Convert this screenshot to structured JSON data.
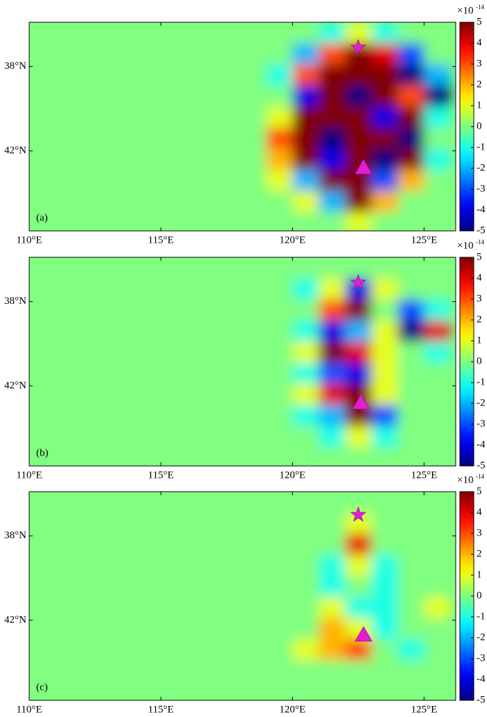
{
  "chart_data": [
    {
      "type": "heatmap",
      "panel_label": "(a)",
      "colormap": "jet",
      "clim": [
        -5,
        5
      ],
      "colorbar_ticks": [
        5,
        4,
        3,
        2,
        1,
        0,
        -1,
        -2,
        -3,
        -4,
        -5
      ],
      "colorbar_scale": {
        "base": "×10",
        "exponent": "-14"
      },
      "xlim": [
        110,
        126.2
      ],
      "ylim": [
        35.9,
        45.8
      ],
      "y_inverted": true,
      "xticks": [
        {
          "value": 110,
          "label": "110°E"
        },
        {
          "value": 115,
          "label": "115°E"
        },
        {
          "value": 120,
          "label": "120°E"
        },
        {
          "value": 125,
          "label": "125°E"
        }
      ],
      "yticks": [
        {
          "value": 38,
          "label": "38°N"
        },
        {
          "value": 42,
          "label": "42°N"
        }
      ],
      "x": [
        110.5,
        111.5,
        112.5,
        113.5,
        114.5,
        115.5,
        116.5,
        117.5,
        118.5,
        119.5,
        120.5,
        121.5,
        122.5,
        123.5,
        124.5,
        125.5
      ],
      "y": [
        36.4,
        37.4,
        38.4,
        39.4,
        40.4,
        41.4,
        42.4,
        43.4,
        44.4,
        45.4
      ],
      "z": [
        [
          0,
          0,
          0,
          0,
          0,
          0,
          0,
          0,
          0,
          0,
          0,
          -1,
          1,
          -1,
          0,
          0
        ],
        [
          0,
          0,
          0,
          0,
          0,
          0,
          0,
          0,
          0,
          0,
          -2,
          3,
          5,
          4,
          -3,
          0
        ],
        [
          0,
          0,
          0,
          0,
          0,
          0,
          0,
          0,
          0,
          -1,
          3,
          5,
          5,
          5,
          -5,
          -2
        ],
        [
          0,
          0,
          0,
          0,
          0,
          0,
          0,
          0,
          0,
          0,
          -4,
          5,
          -5,
          5,
          3,
          -5
        ],
        [
          0,
          0,
          0,
          0,
          0,
          0,
          0,
          0,
          0,
          1,
          5,
          5,
          5,
          -4,
          5,
          -1
        ],
        [
          0,
          0,
          0,
          0,
          0,
          0,
          0,
          0,
          0,
          3,
          5,
          -5,
          5,
          5,
          -5,
          0
        ],
        [
          0,
          0,
          0,
          0,
          0,
          0,
          0,
          0,
          0,
          2,
          5,
          -4,
          5,
          -5,
          5,
          -1
        ],
        [
          0,
          0,
          0,
          0,
          0,
          0,
          0,
          0,
          0,
          1,
          -2,
          5,
          5,
          -3,
          2,
          0
        ],
        [
          0,
          0,
          0,
          0,
          0,
          0,
          0,
          0,
          0,
          0,
          1,
          -2,
          5,
          2,
          0,
          0
        ],
        [
          0,
          0,
          0,
          0,
          0,
          0,
          0,
          0,
          0,
          0,
          0,
          0,
          1,
          0,
          0,
          0
        ]
      ],
      "markers": [
        {
          "shape": "star",
          "lon": 122.5,
          "lat": 37.1,
          "color": "#e020d0"
        },
        {
          "shape": "triangle",
          "lon": 122.7,
          "lat": 42.8,
          "color": "#e020d0"
        }
      ]
    },
    {
      "type": "heatmap",
      "panel_label": "(b)",
      "colormap": "jet",
      "clim": [
        -5,
        5
      ],
      "colorbar_ticks": [
        5,
        4,
        3,
        2,
        1,
        0,
        -1,
        -2,
        -3,
        -4,
        -5
      ],
      "colorbar_scale": {
        "base": "×10",
        "exponent": "-14"
      },
      "xlim": [
        110,
        126.2
      ],
      "ylim": [
        35.9,
        45.8
      ],
      "y_inverted": true,
      "xticks": [
        {
          "value": 110,
          "label": "110°E"
        },
        {
          "value": 115,
          "label": "115°E"
        },
        {
          "value": 120,
          "label": "120°E"
        },
        {
          "value": 125,
          "label": "125°E"
        }
      ],
      "yticks": [
        {
          "value": 38,
          "label": "38°N"
        },
        {
          "value": 42,
          "label": "42°N"
        }
      ],
      "x": [
        110.5,
        111.5,
        112.5,
        113.5,
        114.5,
        115.5,
        116.5,
        117.5,
        118.5,
        119.5,
        120.5,
        121.5,
        122.5,
        123.5,
        124.5,
        125.5
      ],
      "y": [
        36.4,
        37.4,
        38.4,
        39.4,
        40.4,
        41.4,
        42.4,
        43.4,
        44.4,
        45.4
      ],
      "z": [
        [
          0,
          0,
          0,
          0,
          0,
          0,
          0,
          0,
          0,
          0,
          0,
          0,
          0,
          0,
          0,
          0
        ],
        [
          0,
          0,
          0,
          0,
          0,
          0,
          0,
          0,
          0,
          0,
          -1,
          1,
          -4,
          1,
          0,
          0
        ],
        [
          0,
          0,
          0,
          0,
          0,
          0,
          0,
          0,
          0,
          0,
          0,
          3,
          5,
          0,
          -3,
          -1
        ],
        [
          0,
          0,
          0,
          0,
          0,
          0,
          0,
          0,
          0,
          0,
          -1,
          -4,
          -2,
          1,
          -5,
          4
        ],
        [
          0,
          0,
          0,
          0,
          0,
          0,
          0,
          0,
          0,
          0,
          1,
          5,
          4,
          1,
          0,
          -1
        ],
        [
          0,
          0,
          0,
          0,
          0,
          0,
          0,
          0,
          0,
          0,
          -1,
          -3,
          -4,
          1,
          0,
          0
        ],
        [
          0,
          0,
          0,
          0,
          0,
          0,
          0,
          0,
          0,
          0,
          1,
          4,
          5,
          1,
          0,
          0
        ],
        [
          0,
          0,
          0,
          0,
          0,
          0,
          0,
          0,
          0,
          0,
          -1,
          -2,
          5,
          -3,
          0,
          0
        ],
        [
          0,
          0,
          0,
          0,
          0,
          0,
          0,
          0,
          0,
          0,
          0,
          -1,
          1,
          -1,
          0,
          0
        ],
        [
          0,
          0,
          0,
          0,
          0,
          0,
          0,
          0,
          0,
          0,
          0,
          0,
          0,
          0,
          0,
          0
        ]
      ],
      "markers": [
        {
          "shape": "star",
          "lon": 122.5,
          "lat": 37.1,
          "color": "#e020d0"
        },
        {
          "shape": "triangle",
          "lon": 122.6,
          "lat": 42.8,
          "color": "#e020d0"
        }
      ]
    },
    {
      "type": "heatmap",
      "panel_label": "(c)",
      "colormap": "jet",
      "clim": [
        -5,
        5
      ],
      "colorbar_ticks": [
        5,
        4,
        3,
        2,
        1,
        0,
        -1,
        -2,
        -3,
        -4,
        -5
      ],
      "colorbar_scale": {
        "base": "×10",
        "exponent": "-14"
      },
      "xlim": [
        110,
        126.2
      ],
      "ylim": [
        35.9,
        45.8
      ],
      "y_inverted": true,
      "xticks": [
        {
          "value": 110,
          "label": "110°E"
        },
        {
          "value": 115,
          "label": "115°E"
        },
        {
          "value": 120,
          "label": "120°E"
        },
        {
          "value": 125,
          "label": "125°E"
        }
      ],
      "yticks": [
        {
          "value": 38,
          "label": "38°N"
        },
        {
          "value": 42,
          "label": "42°N"
        }
      ],
      "x": [
        110.5,
        111.5,
        112.5,
        113.5,
        114.5,
        115.5,
        116.5,
        117.5,
        118.5,
        119.5,
        120.5,
        121.5,
        122.5,
        123.5,
        124.5,
        125.5
      ],
      "y": [
        36.4,
        37.4,
        38.4,
        39.4,
        40.4,
        41.4,
        42.4,
        43.4,
        44.4,
        45.4
      ],
      "z": [
        [
          0,
          0,
          0,
          0,
          0,
          0,
          0,
          0,
          0,
          0,
          0,
          0,
          0,
          0,
          0,
          0
        ],
        [
          0,
          0,
          0,
          0,
          0,
          0,
          0,
          0,
          0,
          0,
          0,
          0,
          1,
          0,
          0,
          0
        ],
        [
          0,
          0,
          0,
          0,
          0,
          0,
          0,
          0,
          0,
          0,
          0,
          0,
          4,
          0,
          0,
          0
        ],
        [
          0,
          0,
          0,
          0,
          0,
          0,
          0,
          0,
          0,
          0,
          0,
          -1,
          1,
          -1,
          0,
          0
        ],
        [
          0,
          0,
          0,
          0,
          0,
          0,
          0,
          0,
          0,
          0,
          0,
          -1,
          0,
          -1,
          0,
          0
        ],
        [
          0,
          0,
          0,
          0,
          0,
          0,
          0,
          0,
          0,
          0,
          0,
          1,
          -1,
          -1,
          0,
          1
        ],
        [
          0,
          0,
          0,
          0,
          0,
          0,
          0,
          0,
          0,
          0,
          0,
          2,
          1,
          -1,
          0,
          0
        ],
        [
          0,
          0,
          0,
          0,
          0,
          0,
          0,
          0,
          0,
          0,
          1,
          2,
          3,
          0,
          -1,
          0
        ],
        [
          0,
          0,
          0,
          0,
          0,
          0,
          0,
          0,
          0,
          0,
          0,
          0,
          0,
          0,
          0,
          0
        ],
        [
          0,
          0,
          0,
          0,
          0,
          0,
          0,
          0,
          0,
          0,
          0,
          0,
          0,
          0,
          0,
          0
        ]
      ],
      "markers": [
        {
          "shape": "star",
          "lon": 122.5,
          "lat": 37.0,
          "color": "#e020d0"
        },
        {
          "shape": "triangle",
          "lon": 122.7,
          "lat": 42.7,
          "color": "#e020d0"
        }
      ]
    }
  ]
}
